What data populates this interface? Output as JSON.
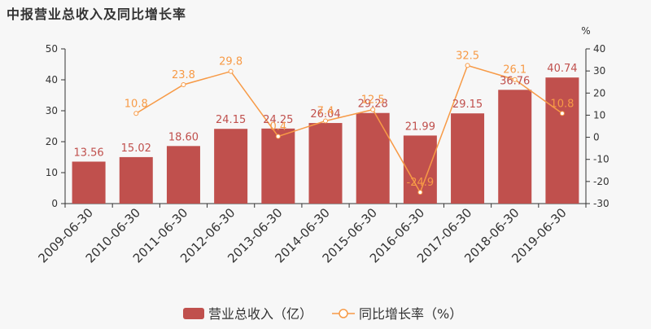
{
  "chart_data": {
    "type": "bar",
    "title": "中报营业总收入及同比增长率",
    "categories": [
      "2009-06-30",
      "2010-06-30",
      "2011-06-30",
      "2012-06-30",
      "2013-06-30",
      "2014-06-30",
      "2015-06-30",
      "2016-06-30",
      "2017-06-30",
      "2018-06-30",
      "2019-06-30"
    ],
    "series": [
      {
        "name": "营业总收入（亿）",
        "type": "bar",
        "axis": "left",
        "color": "#c0504d",
        "values": [
          13.56,
          15.02,
          18.6,
          24.15,
          24.25,
          26.04,
          29.28,
          21.99,
          29.15,
          36.76,
          40.74
        ],
        "labels": [
          "13.56",
          "15.02",
          "18.60",
          "24.15",
          "24.25",
          "26.04",
          "29.28",
          "21.99",
          "29.15",
          "36.76",
          "40.74"
        ]
      },
      {
        "name": "同比增长率（%）",
        "type": "line",
        "axis": "right",
        "color": "#f79a46",
        "values": [
          null,
          10.8,
          23.8,
          29.8,
          0.4,
          7.4,
          12.5,
          -24.9,
          32.5,
          26.1,
          10.8
        ],
        "labels": [
          "",
          "10.8",
          "23.8",
          "29.8",
          "0.4",
          "7.4",
          "12.5",
          "-24.9",
          "32.5",
          "26.1",
          "10.8"
        ]
      }
    ],
    "y_left": {
      "min": 0,
      "max": 50,
      "ticks": [
        0,
        10,
        20,
        30,
        40,
        50
      ]
    },
    "y_right": {
      "min": -30,
      "max": 40,
      "ticks": [
        -30,
        -20,
        -10,
        0,
        10,
        20,
        30,
        40
      ],
      "unit": "%"
    },
    "grid": false,
    "legend_position": "bottom-center",
    "colors": {
      "axis": "#333333",
      "label_bar": "#c0504d",
      "label_line": "#f79a46"
    }
  }
}
